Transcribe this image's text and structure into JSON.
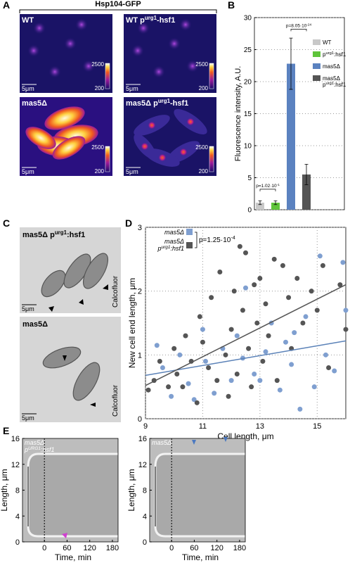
{
  "panel_labels": [
    "A",
    "B",
    "C",
    "D",
    "E"
  ],
  "panel_a": {
    "title": "Hsp104-GFP",
    "images": [
      {
        "label": [
          [
            "WT"
          ]
        ]
      },
      {
        "label": [
          [
            "WT p",
            "urg1",
            "-hsf1"
          ]
        ]
      },
      {
        "label": [
          [
            "mas5Δ"
          ]
        ]
      },
      {
        "label": [
          [
            "mas5Δ p",
            "urg1",
            "-hsf1"
          ]
        ]
      }
    ],
    "colorbar_max": 2500,
    "colorbar_min": 200,
    "scale_bar": "5μm"
  },
  "panel_c": {
    "images": [
      {
        "label": [
          [
            "mas5Δ p",
            "urg1",
            ":hsf1"
          ]
        ],
        "stain": "Calcofluor",
        "scale_bar": "5μm"
      },
      {
        "label": [
          [
            "mas5Δ"
          ]
        ],
        "stain": "Calcofluor",
        "scale_bar": "5μm"
      }
    ]
  },
  "chart_data": [
    {
      "type": "bar",
      "ylabel": "Fluorescence intensity, A.U.",
      "categories": [
        [
          [
            "WT"
          ]
        ],
        [
          [
            "p",
            "urg1",
            ":hsf1"
          ]
        ],
        [
          [
            "mas5Δ"
          ]
        ],
        [
          [
            "mas5Δ"
          ],
          [
            "p",
            "urg1",
            ":hsf1"
          ]
        ]
      ],
      "values": [
        1.1,
        1.1,
        22.8,
        5.5
      ],
      "errors": [
        0.3,
        0.3,
        4,
        1.6
      ],
      "colors": [
        "#c8c8c8",
        "#5fc43a",
        "#5b82c0",
        "#555555"
      ],
      "annotations": [
        [
          "p=1.02·10",
          "-1"
        ],
        [
          "p=8.05·10",
          "-24"
        ]
      ],
      "ylim": [
        0,
        30
      ],
      "yticks": [
        0,
        5,
        10,
        15,
        20,
        25,
        30
      ],
      "grid": true
    },
    {
      "type": "scatter",
      "xlabel": "Cell length, μm",
      "ylabel": "New cell end length, μm",
      "xlim": [
        9,
        16
      ],
      "ylim": [
        0,
        3
      ],
      "xticks": [
        9,
        11,
        13,
        15
      ],
      "yticks": [
        0,
        1,
        2,
        3
      ],
      "grid": true,
      "annotation": [
        "p=1.25·10",
        "-4"
      ],
      "series": [
        {
          "name": [
            [
              "mas5Δ"
            ]
          ],
          "color": "#7f9fd0",
          "line_color": "#5b82b8",
          "x": [
            9.4,
            9.6,
            9.9,
            10.2,
            10.5,
            10.7,
            11,
            11.1,
            11.4,
            11.7,
            12,
            12.2,
            12.4,
            12.5,
            12.8,
            13,
            13.2,
            13.4,
            13.7,
            13.9,
            14.1,
            14.2,
            14.4,
            14.6,
            14.9,
            15.1,
            15.3,
            15.6,
            15.9,
            16
          ],
          "values": [
            1.15,
            0.8,
            0.35,
            1.0,
            0.55,
            0.3,
            1.4,
            0.9,
            0.4,
            1.1,
            0.6,
            1.3,
            0.95,
            2.05,
            0.7,
            0.6,
            1.05,
            1.5,
            0.45,
            1.2,
            0.85,
            1.35,
            0.15,
            1.6,
            0.5,
            2.55,
            1.0,
            0.75,
            2.45,
            1.7
          ],
          "fit_x": [
            9,
            16
          ],
          "fit_y": [
            0.68,
            1.22
          ]
        },
        {
          "name": [
            [
              "mas5Δ"
            ],
            [
              "p",
              "urg1",
              ":hsf1"
            ]
          ],
          "color": "#555555",
          "line_color": "#555555",
          "x": [
            9.1,
            9.3,
            9.5,
            9.8,
            10,
            10.1,
            10.3,
            10.4,
            10.6,
            10.8,
            10.9,
            11,
            11.2,
            11.3,
            11.5,
            11.6,
            11.8,
            11.9,
            12,
            12.1,
            12.2,
            12.3,
            12.4,
            12.5,
            12.6,
            12.7,
            12.8,
            12.9,
            13,
            13.1,
            13.2,
            13.3,
            13.5,
            13.6,
            13.8,
            14,
            14.1,
            14.3,
            14.5,
            14.8,
            15,
            15.2,
            15.4,
            15.8,
            16
          ],
          "values": [
            0.45,
            0.6,
            0.9,
            0.5,
            1.1,
            0.7,
            0.5,
            1.3,
            0.9,
            0.25,
            1.6,
            1.2,
            0.8,
            1.9,
            0.6,
            2.3,
            1.0,
            0.35,
            1.4,
            2.0,
            0.7,
            2.7,
            1.7,
            2.6,
            1.1,
            0.5,
            2.1,
            1.5,
            2.2,
            0.9,
            1.8,
            1.3,
            2.5,
            0.6,
            2.4,
            1.9,
            1.1,
            2.2,
            1.5,
            2.0,
            1.7,
            2.4,
            0.8,
            2.1,
            1.4
          ],
          "fit_x": [
            9,
            16
          ],
          "fit_y": [
            0.52,
            2.1
          ]
        }
      ]
    },
    {
      "type": "kymograph",
      "xlabel": "Time, min",
      "ylabel": "Length, μm",
      "label": [
        [
          "mas5Δ"
        ],
        [
          "p",
          "URG1",
          ":hsf1"
        ]
      ],
      "xlim": [
        -58,
        195
      ],
      "ylim": [
        0,
        16
      ],
      "xticks": [
        0,
        60,
        120,
        180
      ],
      "yticks": [
        0,
        4,
        8,
        12,
        16
      ]
    },
    {
      "type": "kymograph",
      "xlabel": "Time, min",
      "ylabel": "Length, μm",
      "label": [
        [
          "mas5Δ"
        ]
      ],
      "xlim": [
        -58,
        195
      ],
      "ylim": [
        0,
        16
      ],
      "xticks": [
        0,
        60,
        120,
        180
      ],
      "yticks": [
        0,
        4,
        8,
        12,
        16
      ]
    }
  ]
}
